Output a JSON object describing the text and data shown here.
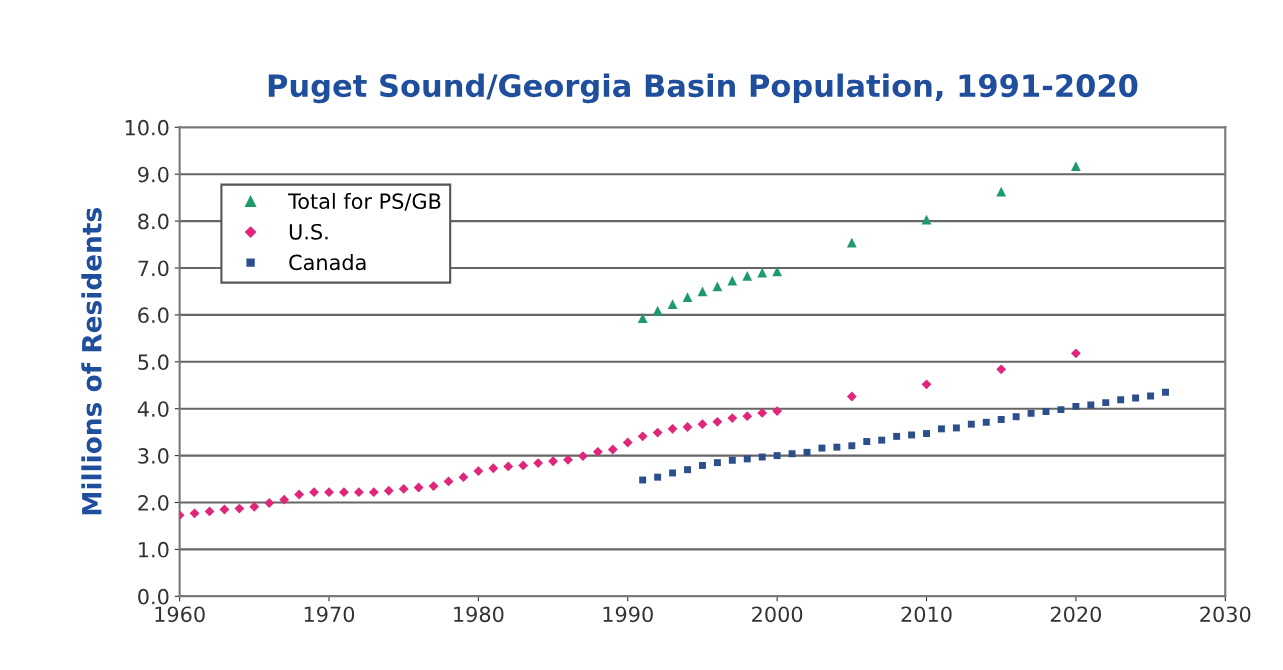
{
  "chart_data": {
    "type": "scatter",
    "title": "Puget Sound/Georgia Basin Population, 1991-2020",
    "ylabel": "Millions of Residents",
    "xlim": [
      1960,
      2030
    ],
    "xticks": [
      1960,
      1970,
      1980,
      1990,
      2000,
      2010,
      2020,
      2030
    ],
    "ylim": [
      0,
      10
    ],
    "yticks": [
      {
        "value": 0,
        "label": "0.0"
      },
      {
        "value": 1,
        "label": "1.0"
      },
      {
        "value": 2,
        "label": "2.0"
      },
      {
        "value": 3,
        "label": "3.0"
      },
      {
        "value": 4,
        "label": "4.0"
      },
      {
        "value": 5,
        "label": "5.0"
      },
      {
        "value": 6,
        "label": "6.0"
      },
      {
        "value": 7,
        "label": "7.0"
      },
      {
        "value": 8,
        "label": "8.0"
      },
      {
        "value": 9,
        "label": "9.0"
      },
      {
        "value": 10,
        "label": "10.0"
      }
    ],
    "grid": "y",
    "legend": "top left",
    "series": [
      {
        "name": "Total for PS/GB",
        "color": "#1f9a6a",
        "marker": "triangle",
        "x": [
          1991,
          1992,
          1993,
          1994,
          1995,
          1996,
          1997,
          1998,
          1999,
          2000,
          2005,
          2010,
          2015,
          2020
        ],
        "values": [
          5.93,
          6.09,
          6.23,
          6.38,
          6.5,
          6.61,
          6.73,
          6.83,
          6.9,
          6.93,
          7.54,
          8.03,
          8.63,
          9.17
        ]
      },
      {
        "name": "U.S.",
        "color": "#e0267a",
        "marker": "diamond",
        "x": [
          1960,
          1961,
          1962,
          1963,
          1964,
          1965,
          1966,
          1967,
          1968,
          1969,
          1970,
          1971,
          1972,
          1973,
          1974,
          1975,
          1976,
          1977,
          1978,
          1979,
          1980,
          1981,
          1982,
          1983,
          1984,
          1985,
          1986,
          1987,
          1988,
          1989,
          1990,
          1991,
          1992,
          1993,
          1994,
          1995,
          1996,
          1997,
          1998,
          1999,
          2000,
          2005,
          2010,
          2015,
          2020
        ],
        "values": [
          1.73,
          1.77,
          1.81,
          1.85,
          1.87,
          1.91,
          1.99,
          2.06,
          2.17,
          2.22,
          2.22,
          2.22,
          2.22,
          2.22,
          2.25,
          2.29,
          2.32,
          2.35,
          2.45,
          2.54,
          2.67,
          2.73,
          2.77,
          2.79,
          2.84,
          2.88,
          2.91,
          2.99,
          3.08,
          3.13,
          3.28,
          3.41,
          3.49,
          3.57,
          3.61,
          3.67,
          3.72,
          3.8,
          3.84,
          3.91,
          3.95,
          4.26,
          4.52,
          4.84,
          5.18
        ]
      },
      {
        "name": "Canada",
        "color": "#2c4f8c",
        "marker": "square",
        "x": [
          1991,
          1992,
          1993,
          1994,
          1995,
          1996,
          1997,
          1998,
          1999,
          2000,
          2001,
          2002,
          2003,
          2004,
          2005,
          2006,
          2007,
          2008,
          2009,
          2010,
          2011,
          2012,
          2013,
          2014,
          2015,
          2016,
          2017,
          2018,
          2019,
          2020,
          2021,
          2022,
          2023,
          2024,
          2025,
          2026
        ],
        "values": [
          2.48,
          2.54,
          2.63,
          2.7,
          2.79,
          2.85,
          2.9,
          2.93,
          2.97,
          3.0,
          3.04,
          3.07,
          3.16,
          3.18,
          3.21,
          3.3,
          3.33,
          3.41,
          3.44,
          3.47,
          3.57,
          3.59,
          3.67,
          3.71,
          3.77,
          3.83,
          3.9,
          3.94,
          3.98,
          4.05,
          4.08,
          4.13,
          4.19,
          4.23,
          4.27,
          4.35
        ]
      }
    ]
  }
}
